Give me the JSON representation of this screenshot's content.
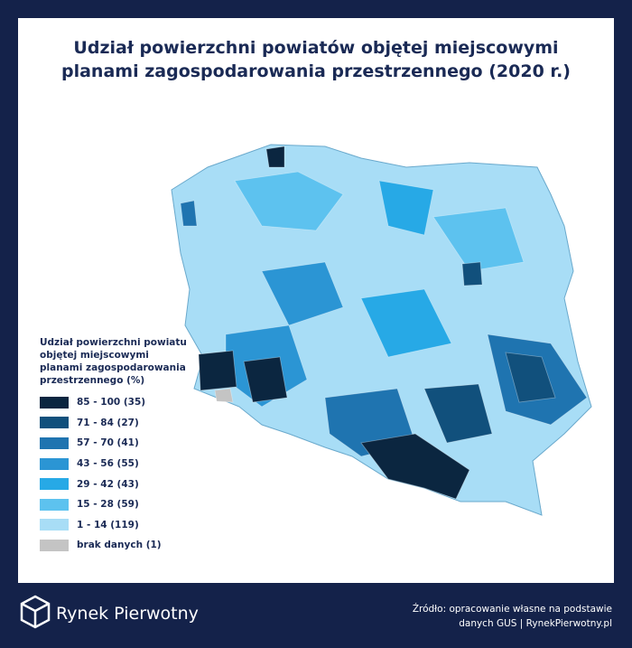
{
  "title": [
    "Udział powierzchni powiatów objętej miejscowymi",
    "planami zagospodarowania przestrzennego (2020 r.)"
  ],
  "legend": {
    "title": "Udział powierzchni powiatu objętej miejscowymi planami zagospodarowania przestrzennego (%)",
    "items": [
      {
        "label": "85 - 100 (35)",
        "color": "#0b2640"
      },
      {
        "label": "71 - 84 (27)",
        "color": "#11507c"
      },
      {
        "label": "57 - 70 (41)",
        "color": "#1f74b0"
      },
      {
        "label": "43 - 56 (55)",
        "color": "#2b95d4"
      },
      {
        "label": "29 - 42 (43)",
        "color": "#27a9e6"
      },
      {
        "label": "15 - 28 (59)",
        "color": "#5dc2ef"
      },
      {
        "label": "1 - 14 (119)",
        "color": "#a8ddf6"
      },
      {
        "label": "brak danych (1)",
        "color": "#c4c4c4"
      }
    ]
  },
  "footer": {
    "brand": "Rynek Pierwotny",
    "source": [
      "Źródło: opracowanie własne na podstawie",
      "danych GUS | RynekPierwotny.pl"
    ]
  }
}
